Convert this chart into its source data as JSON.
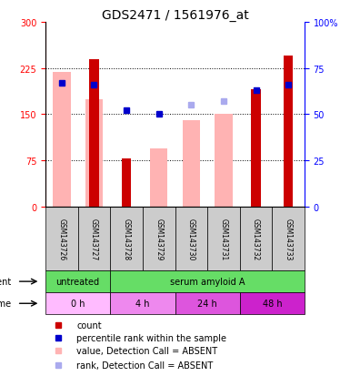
{
  "title": "GDS2471 / 1561976_at",
  "samples": [
    "GSM143726",
    "GSM143727",
    "GSM143728",
    "GSM143729",
    "GSM143730",
    "GSM143731",
    "GSM143732",
    "GSM143733"
  ],
  "red_bars": [
    0,
    240,
    78,
    0,
    0,
    0,
    190,
    245
  ],
  "pink_bars": [
    218,
    175,
    0,
    95,
    140,
    150,
    0,
    0
  ],
  "blue_squares": [
    67,
    66,
    52,
    50,
    0,
    0,
    63,
    66
  ],
  "lightblue_squares": [
    0,
    0,
    0,
    0,
    55,
    57,
    0,
    0
  ],
  "left_ylim": [
    0,
    300
  ],
  "right_ylim": [
    0,
    100
  ],
  "left_yticks": [
    0,
    75,
    150,
    225,
    300
  ],
  "right_yticks": [
    0,
    25,
    50,
    75,
    100
  ],
  "right_yticklabels": [
    "0",
    "25",
    "50",
    "75",
    "100%"
  ],
  "time_labels": [
    "0 h",
    "4 h",
    "24 h",
    "48 h"
  ],
  "red_color": "#cc0000",
  "pink_color": "#ffb3b3",
  "blue_color": "#0000cc",
  "lightblue_color": "#aaaaee",
  "agent_green": "#66dd66",
  "title_fontsize": 10,
  "tick_fontsize": 7,
  "legend_fontsize": 7
}
